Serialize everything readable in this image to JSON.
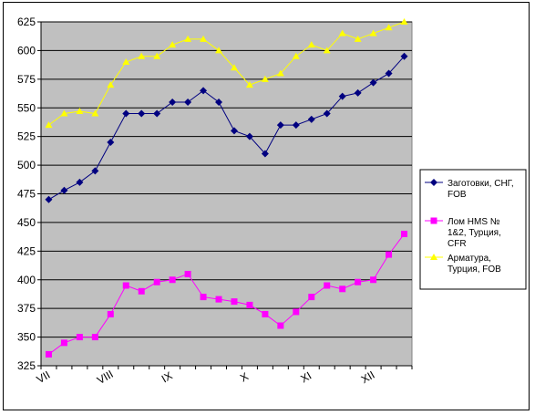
{
  "chart_data": {
    "type": "line",
    "ylim": [
      325,
      625
    ],
    "y_ticks": [
      325,
      350,
      375,
      400,
      425,
      450,
      475,
      500,
      525,
      550,
      575,
      600,
      625
    ],
    "x_points": 24,
    "x_month_labels": [
      {
        "label": "VII",
        "index": 0
      },
      {
        "label": "VIII",
        "index": 4
      },
      {
        "label": "IX",
        "index": 8
      },
      {
        "label": "X",
        "index": 13
      },
      {
        "label": "XI",
        "index": 17
      },
      {
        "label": "XII",
        "index": 21
      }
    ],
    "grid": true,
    "plot_background": "#c0c0c0",
    "legend_position": "right",
    "series": [
      {
        "name": "Заготовки, СНГ, FOB",
        "legend_lines": [
          "Заготовки, СНГ,",
          "FOB"
        ],
        "color": "#000080",
        "marker": "diamond",
        "values": [
          470,
          478,
          485,
          495,
          520,
          545,
          545,
          545,
          555,
          555,
          565,
          555,
          530,
          525,
          510,
          535,
          535,
          540,
          545,
          560,
          563,
          572,
          580,
          595
        ]
      },
      {
        "name": "Лом HMS № 1&2, Турция, CFR",
        "legend_lines": [
          "Лом HMS №",
          "1&2, Турция,",
          "CFR"
        ],
        "color": "#ff00ff",
        "marker": "square",
        "values": [
          335,
          345,
          350,
          350,
          370,
          395,
          390,
          398,
          400,
          405,
          385,
          383,
          381,
          378,
          370,
          360,
          372,
          385,
          395,
          392,
          398,
          400,
          422,
          440
        ]
      },
      {
        "name": "Арматура, Турция, FOB",
        "legend_lines": [
          "Арматура,",
          "Турция, FOB"
        ],
        "color": "#ffff00",
        "marker": "triangle",
        "values": [
          535,
          545,
          547,
          545,
          570,
          590,
          595,
          595,
          605,
          610,
          610,
          600,
          585,
          570,
          575,
          580,
          595,
          605,
          600,
          615,
          610,
          615,
          620,
          625
        ]
      }
    ]
  }
}
